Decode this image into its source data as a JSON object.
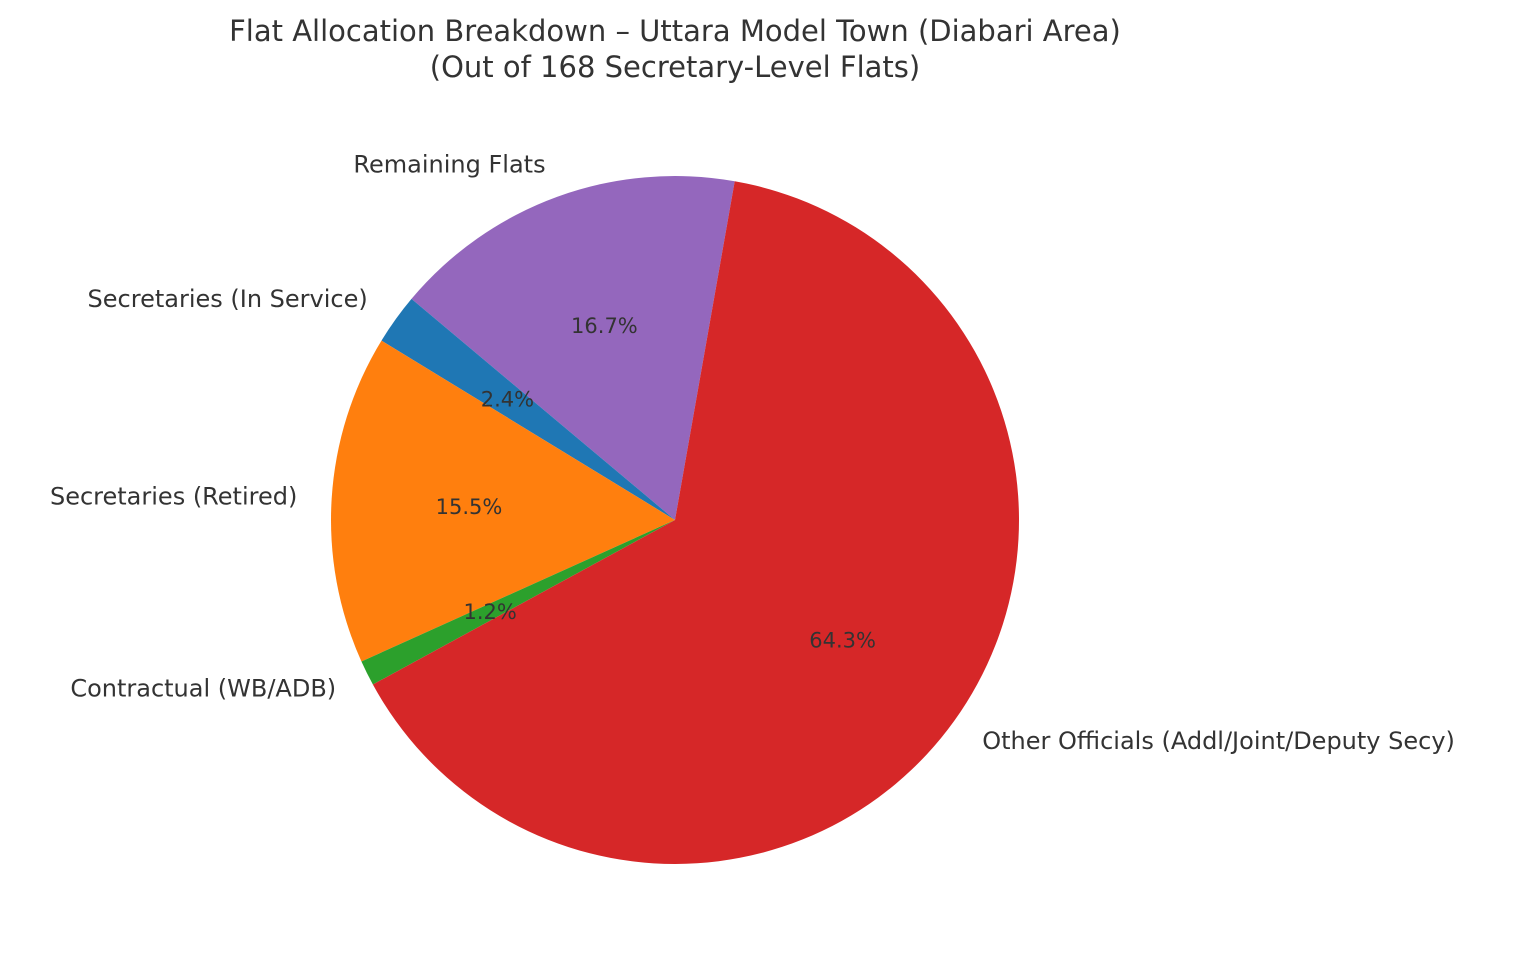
{
  "chart_data": {
    "type": "pie",
    "title_line1": "Flat Allocation Breakdown – Uttara Model Town (Diabari Area)",
    "title_line2": "(Out of 168 Secretary-Level Flats)",
    "total": 168,
    "start_angle_deg": 80,
    "direction": "counterclockwise",
    "slices": [
      {
        "label": "Remaining Flats",
        "value": 28,
        "percent_label": "16.7%",
        "color": "#9467bd"
      },
      {
        "label": "Secretaries (In Service)",
        "value": 4,
        "percent_label": "2.4%",
        "color": "#1f77b4"
      },
      {
        "label": "Secretaries (Retired)",
        "value": 26,
        "percent_label": "15.5%",
        "color": "#ff7f0e"
      },
      {
        "label": "Contractual (WB/ADB)",
        "value": 2,
        "percent_label": "1.2%",
        "color": "#2ca02c"
      },
      {
        "label": "Other Officials (Addl/Joint/Deputy Secy)",
        "value": 108,
        "percent_label": "64.3%",
        "color": "#d62728"
      }
    ]
  }
}
